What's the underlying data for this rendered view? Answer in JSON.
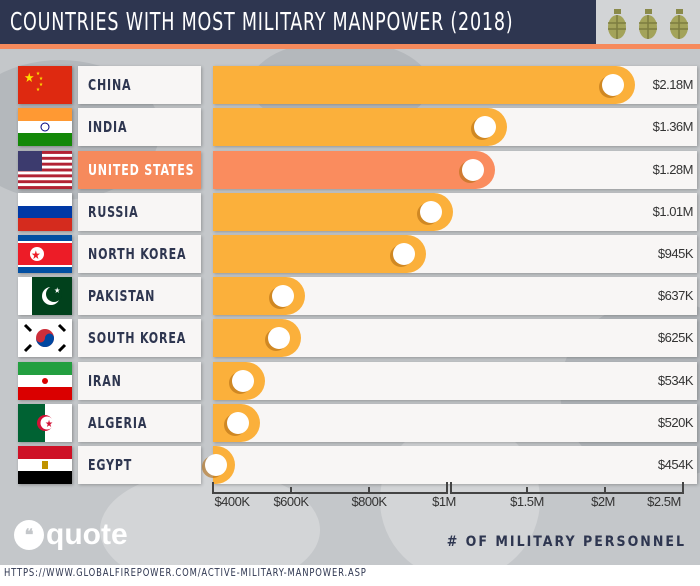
{
  "title": "COUNTRIES WITH MOST MILITARY MANPOWER (2018)",
  "colors": {
    "header": "#2e3650",
    "accent": "#f68a5c",
    "bar": "#fbb03b",
    "highlight": "#fa8c5e"
  },
  "chart_data": {
    "type": "bar",
    "orientation": "horizontal",
    "xlabel": "# OF MILITARY PERSONNEL",
    "x_scale": "broken: $400K-$1M segment and $1M-$2.5M segment",
    "categories": [
      "CHINA",
      "INDIA",
      "UNITED STATES",
      "RUSSIA",
      "NORTH KOREA",
      "PAKISTAN",
      "SOUTH KOREA",
      "IRAN",
      "ALGERIA",
      "EGYPT"
    ],
    "values": [
      2180000,
      1360000,
      1280000,
      1010000,
      945000,
      637000,
      625000,
      534000,
      520000,
      454000
    ],
    "labels": [
      "$2.18M",
      "$1.36M",
      "$1.28M",
      "$1.01M",
      "$945K",
      "$637K",
      "$625K",
      "$534K",
      "$520K",
      "$454K"
    ],
    "highlighted": "UNITED STATES",
    "ticks_left": [
      "$400K",
      "$600K",
      "$800K",
      "$1M"
    ],
    "tick_values_left": [
      400000,
      600000,
      800000,
      1000000
    ],
    "ticks_right": [
      "$1M",
      "$1.5M",
      "$2M",
      "$2.5M"
    ],
    "tick_values_right": [
      1000000,
      1500000,
      2000000,
      2500000
    ],
    "xlim": [
      400000,
      2500000
    ]
  },
  "logo": "quote",
  "source": "HTTPS://WWW.GLOBALFIREPOWER.COM/ACTIVE-MILITARY-MANPOWER.ASP"
}
